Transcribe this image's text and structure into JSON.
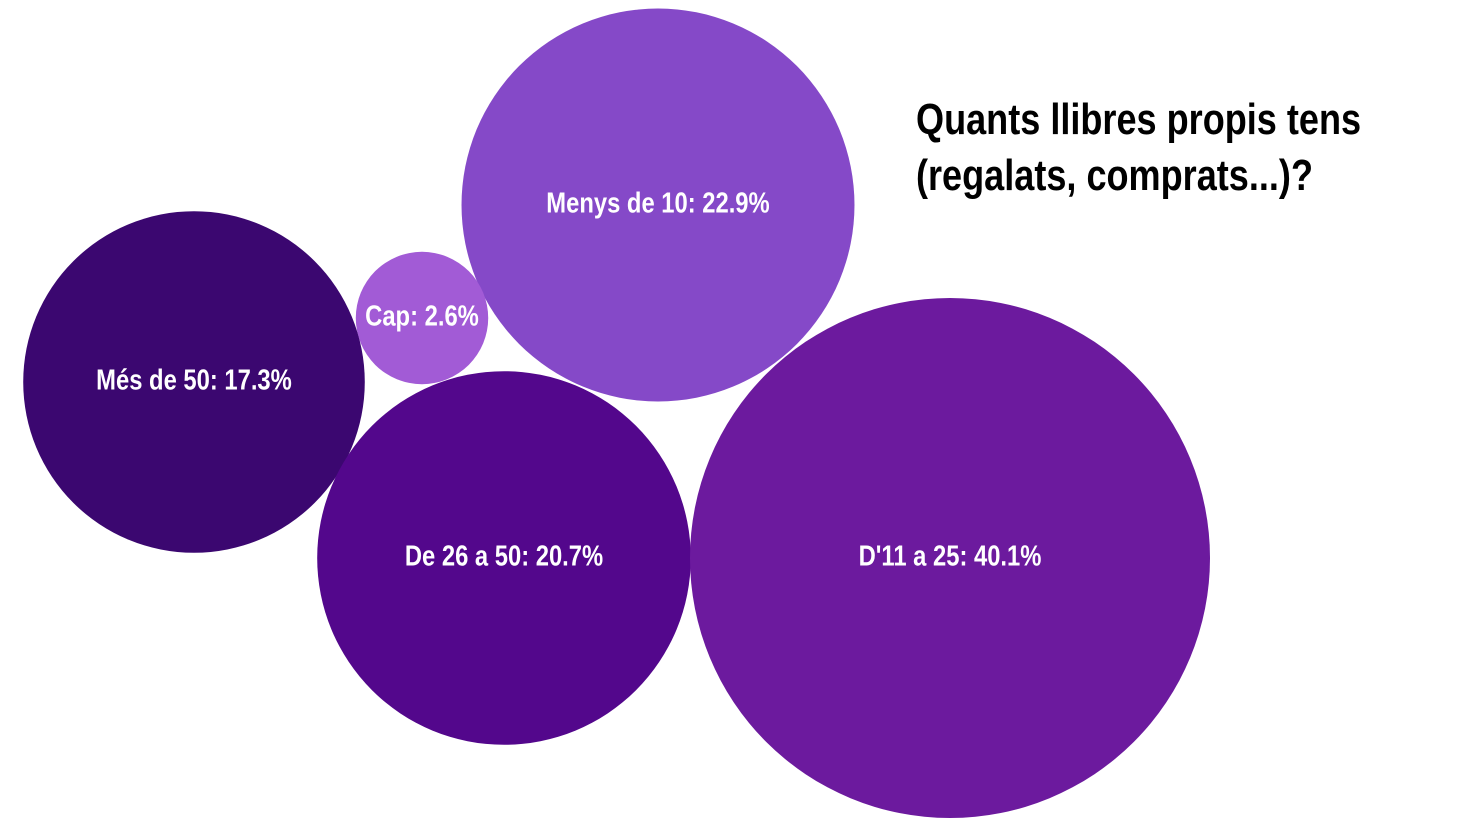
{
  "chart_data": {
    "type": "bubble",
    "title": "Quants llibres propis tens\n(regalats, comprats...)?",
    "values": [
      22.9,
      2.6,
      17.3,
      20.7,
      40.1
    ],
    "value_labels": [
      "Menys de 10: 22.9%",
      "Cap: 2.6%",
      "Més de 50: 17.3%",
      "De 26 a 50: 20.7%",
      "D'11 a 25: 40.1%"
    ],
    "colors": [
      "#8549c8",
      "#a25bd6",
      "#3b0770",
      "#53078c",
      "#6c1a9e"
    ]
  }
}
